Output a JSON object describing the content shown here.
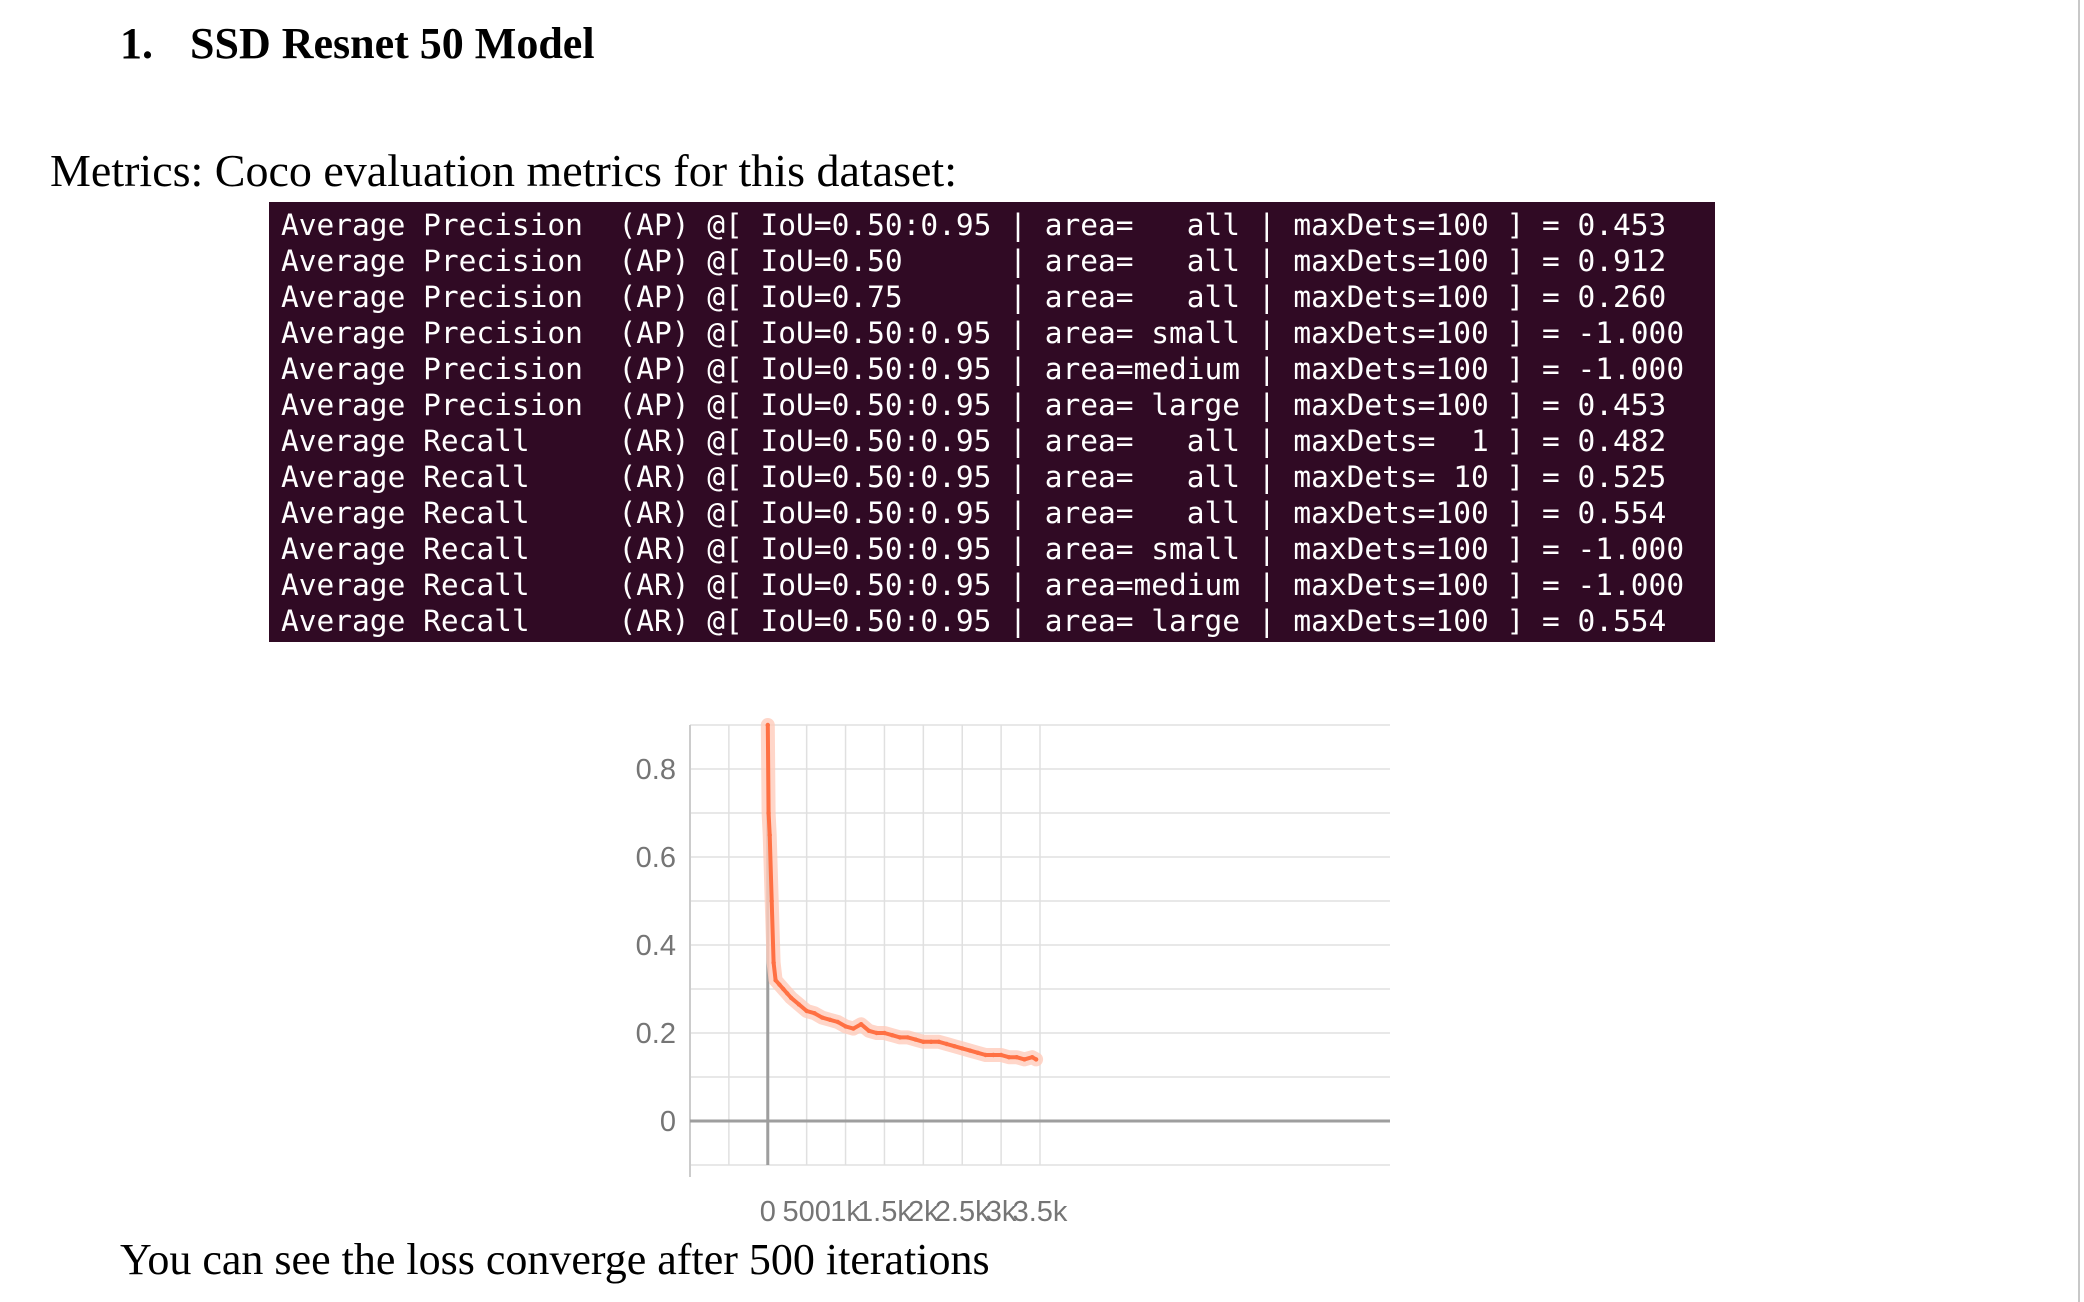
{
  "heading": {
    "number": "1.",
    "title": "SSD Resnet 50 Model"
  },
  "metrics_intro": "Metrics: Coco evaluation metrics for this dataset:",
  "terminal": {
    "background": "#300a24",
    "lines": [
      "Average Precision  (AP) @[ IoU=0.50:0.95 | area=   all | maxDets=100 ] = 0.453",
      "Average Precision  (AP) @[ IoU=0.50      | area=   all | maxDets=100 ] = 0.912",
      "Average Precision  (AP) @[ IoU=0.75      | area=   all | maxDets=100 ] = 0.260",
      "Average Precision  (AP) @[ IoU=0.50:0.95 | area= small | maxDets=100 ] = -1.000",
      "Average Precision  (AP) @[ IoU=0.50:0.95 | area=medium | maxDets=100 ] = -1.000",
      "Average Precision  (AP) @[ IoU=0.50:0.95 | area= large | maxDets=100 ] = 0.453",
      "Average Recall     (AR) @[ IoU=0.50:0.95 | area=   all | maxDets=  1 ] = 0.482",
      "Average Recall     (AR) @[ IoU=0.50:0.95 | area=   all | maxDets= 10 ] = 0.525",
      "Average Recall     (AR) @[ IoU=0.50:0.95 | area=   all | maxDets=100 ] = 0.554",
      "Average Recall     (AR) @[ IoU=0.50:0.95 | area= small | maxDets=100 ] = -1.000",
      "Average Recall     (AR) @[ IoU=0.50:0.95 | area=medium | maxDets=100 ] = -1.000",
      "Average Recall     (AR) @[ IoU=0.50:0.95 | area= large | maxDets=100 ] = 0.554"
    ]
  },
  "chart_data": {
    "type": "line",
    "title": "",
    "xlabel": "",
    "ylabel": "",
    "xlim": [
      -1000,
      8000
    ],
    "ylim": [
      -0.1,
      0.9
    ],
    "x_ticks": [
      0,
      500,
      1000,
      1500,
      2000,
      2500,
      3000,
      3500
    ],
    "x_tick_labels": [
      "0",
      "500",
      "1k",
      "1.5k",
      "2k",
      "2.5k",
      "3k",
      "3.5k"
    ],
    "y_ticks": [
      0,
      0.2,
      0.4,
      0.6,
      0.8
    ],
    "y_tick_labels": [
      "0",
      "0.2",
      "0.4",
      "0.6",
      "0.8"
    ],
    "grid": true,
    "line_color": "#ff7043",
    "raw_color": "#ffccbc",
    "series": [
      {
        "x": [
          0,
          10,
          25,
          50,
          75,
          100,
          150,
          200,
          250,
          300,
          400,
          500,
          600,
          700,
          800,
          900,
          1000,
          1100,
          1200,
          1300,
          1400,
          1500,
          1600,
          1700,
          1800,
          1900,
          2000,
          2100,
          2200,
          2300,
          2400,
          2500,
          2600,
          2700,
          2800,
          2900,
          3000,
          3100,
          3200,
          3300,
          3400,
          3450
        ],
        "y": [
          0.95,
          0.7,
          0.65,
          0.5,
          0.36,
          0.32,
          0.31,
          0.3,
          0.29,
          0.28,
          0.265,
          0.25,
          0.245,
          0.235,
          0.23,
          0.225,
          0.215,
          0.21,
          0.22,
          0.205,
          0.2,
          0.2,
          0.195,
          0.19,
          0.19,
          0.185,
          0.18,
          0.18,
          0.18,
          0.175,
          0.17,
          0.165,
          0.16,
          0.155,
          0.15,
          0.15,
          0.15,
          0.145,
          0.145,
          0.14,
          0.145,
          0.14
        ]
      }
    ]
  },
  "caption": "You can see the loss converge after 500 iterations"
}
